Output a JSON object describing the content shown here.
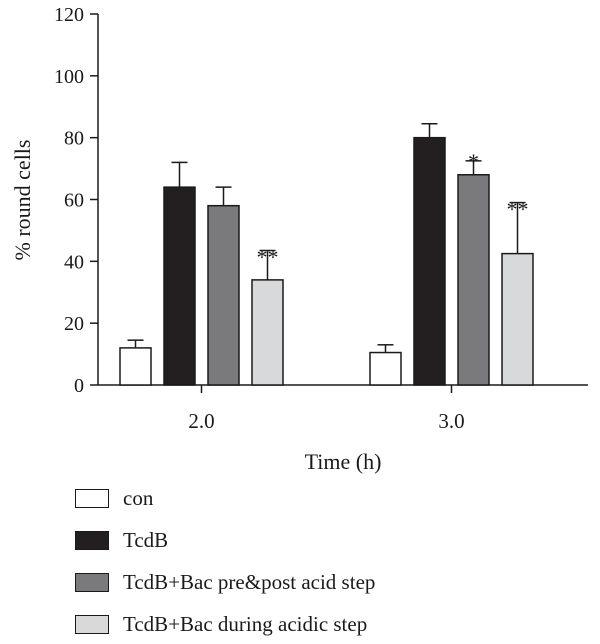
{
  "chart_data": {
    "type": "bar",
    "title": "",
    "xlabel": "Time (h)",
    "ylabel": "% round cells",
    "ylim": [
      0,
      120
    ],
    "yticks": [
      "0",
      "20",
      "40",
      "60",
      "80",
      "100",
      "120"
    ],
    "categories": [
      "2.0",
      "3.0"
    ],
    "grid": false,
    "legend_position": "bottom",
    "series": [
      {
        "name": "con",
        "color": "#ffffff",
        "values": [
          12,
          10.5
        ],
        "errors": [
          2.5,
          2.5
        ],
        "annotations": [
          "",
          ""
        ]
      },
      {
        "name": "TcdB",
        "color": "#231f20",
        "values": [
          64,
          80
        ],
        "errors": [
          8,
          4.5
        ],
        "annotations": [
          "",
          ""
        ]
      },
      {
        "name": "TcdB+Bac pre&post acid step",
        "color": "#7a7a7c",
        "values": [
          58,
          68
        ],
        "errors": [
          6,
          4.5
        ],
        "annotations": [
          "",
          "*"
        ]
      },
      {
        "name": "TcdB+Bac during acidic step",
        "color": "#d8d9db",
        "values": [
          34,
          42.5
        ],
        "errors": [
          9.5,
          16.5
        ],
        "annotations": [
          "**",
          "**"
        ]
      }
    ]
  }
}
